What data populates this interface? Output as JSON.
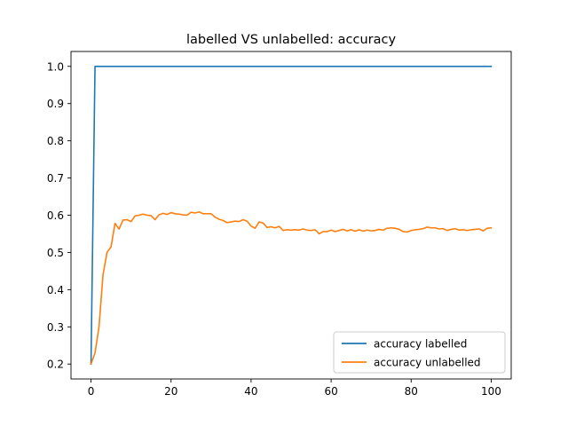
{
  "chart_data": {
    "type": "line",
    "title": "labelled VS unlabelled: accuracy",
    "xlabel": "",
    "ylabel": "",
    "xlim": [
      -5,
      105
    ],
    "ylim": [
      0.16,
      1.04
    ],
    "xticks": [
      0,
      20,
      40,
      60,
      80,
      100
    ],
    "yticks": [
      0.2,
      0.3,
      0.4,
      0.5,
      0.6,
      0.7,
      0.8,
      0.9,
      1.0
    ],
    "ytick_labels": [
      "0.2",
      "0.3",
      "0.4",
      "0.5",
      "0.6",
      "0.7",
      "0.8",
      "0.9",
      "1.0"
    ],
    "grid": false,
    "legend_position": "lower-right",
    "x": [
      0,
      1,
      2,
      3,
      4,
      5,
      6,
      7,
      8,
      9,
      10,
      11,
      12,
      13,
      14,
      15,
      16,
      17,
      18,
      19,
      20,
      21,
      22,
      23,
      24,
      25,
      26,
      27,
      28,
      29,
      30,
      31,
      32,
      33,
      34,
      35,
      36,
      37,
      38,
      39,
      40,
      41,
      42,
      43,
      44,
      45,
      46,
      47,
      48,
      49,
      50,
      51,
      52,
      53,
      54,
      55,
      56,
      57,
      58,
      59,
      60,
      61,
      62,
      63,
      64,
      65,
      66,
      67,
      68,
      69,
      70,
      71,
      72,
      73,
      74,
      75,
      76,
      77,
      78,
      79,
      80,
      81,
      82,
      83,
      84,
      85,
      86,
      87,
      88,
      89,
      90,
      91,
      92,
      93,
      94,
      95,
      96,
      97,
      98,
      99,
      100
    ],
    "series": [
      {
        "name": "accuracy labelled",
        "color": "#1f77b4",
        "values": [
          0.2,
          1.0,
          1.0,
          1.0,
          1.0,
          1.0,
          1.0,
          1.0,
          1.0,
          1.0,
          1.0,
          1.0,
          1.0,
          1.0,
          1.0,
          1.0,
          1.0,
          1.0,
          1.0,
          1.0,
          1.0,
          1.0,
          1.0,
          1.0,
          1.0,
          1.0,
          1.0,
          1.0,
          1.0,
          1.0,
          1.0,
          1.0,
          1.0,
          1.0,
          1.0,
          1.0,
          1.0,
          1.0,
          1.0,
          1.0,
          1.0,
          1.0,
          1.0,
          1.0,
          1.0,
          1.0,
          1.0,
          1.0,
          1.0,
          1.0,
          1.0,
          1.0,
          1.0,
          1.0,
          1.0,
          1.0,
          1.0,
          1.0,
          1.0,
          1.0,
          1.0,
          1.0,
          1.0,
          1.0,
          1.0,
          1.0,
          1.0,
          1.0,
          1.0,
          1.0,
          1.0,
          1.0,
          1.0,
          1.0,
          1.0,
          1.0,
          1.0,
          1.0,
          1.0,
          1.0,
          1.0,
          1.0,
          1.0,
          1.0,
          1.0,
          1.0,
          1.0,
          1.0,
          1.0,
          1.0,
          1.0,
          1.0,
          1.0,
          1.0,
          1.0,
          1.0,
          1.0,
          1.0,
          1.0,
          1.0,
          1.0
        ]
      },
      {
        "name": "accuracy unlabelled",
        "color": "#ff7f0e",
        "values": [
          0.2,
          0.23,
          0.3,
          0.44,
          0.5,
          0.515,
          0.578,
          0.563,
          0.587,
          0.588,
          0.583,
          0.598,
          0.6,
          0.603,
          0.6,
          0.599,
          0.588,
          0.601,
          0.605,
          0.602,
          0.607,
          0.604,
          0.603,
          0.601,
          0.6,
          0.608,
          0.606,
          0.609,
          0.604,
          0.604,
          0.604,
          0.595,
          0.589,
          0.586,
          0.58,
          0.582,
          0.584,
          0.583,
          0.588,
          0.584,
          0.571,
          0.565,
          0.582,
          0.579,
          0.567,
          0.569,
          0.566,
          0.57,
          0.559,
          0.561,
          0.56,
          0.561,
          0.56,
          0.563,
          0.56,
          0.559,
          0.561,
          0.55,
          0.556,
          0.556,
          0.56,
          0.556,
          0.559,
          0.562,
          0.558,
          0.561,
          0.557,
          0.561,
          0.557,
          0.56,
          0.558,
          0.559,
          0.562,
          0.56,
          0.565,
          0.566,
          0.565,
          0.562,
          0.556,
          0.555,
          0.559,
          0.561,
          0.562,
          0.564,
          0.568,
          0.566,
          0.566,
          0.563,
          0.564,
          0.559,
          0.562,
          0.564,
          0.56,
          0.561,
          0.559,
          0.561,
          0.562,
          0.563,
          0.558,
          0.565,
          0.566
        ]
      }
    ]
  }
}
